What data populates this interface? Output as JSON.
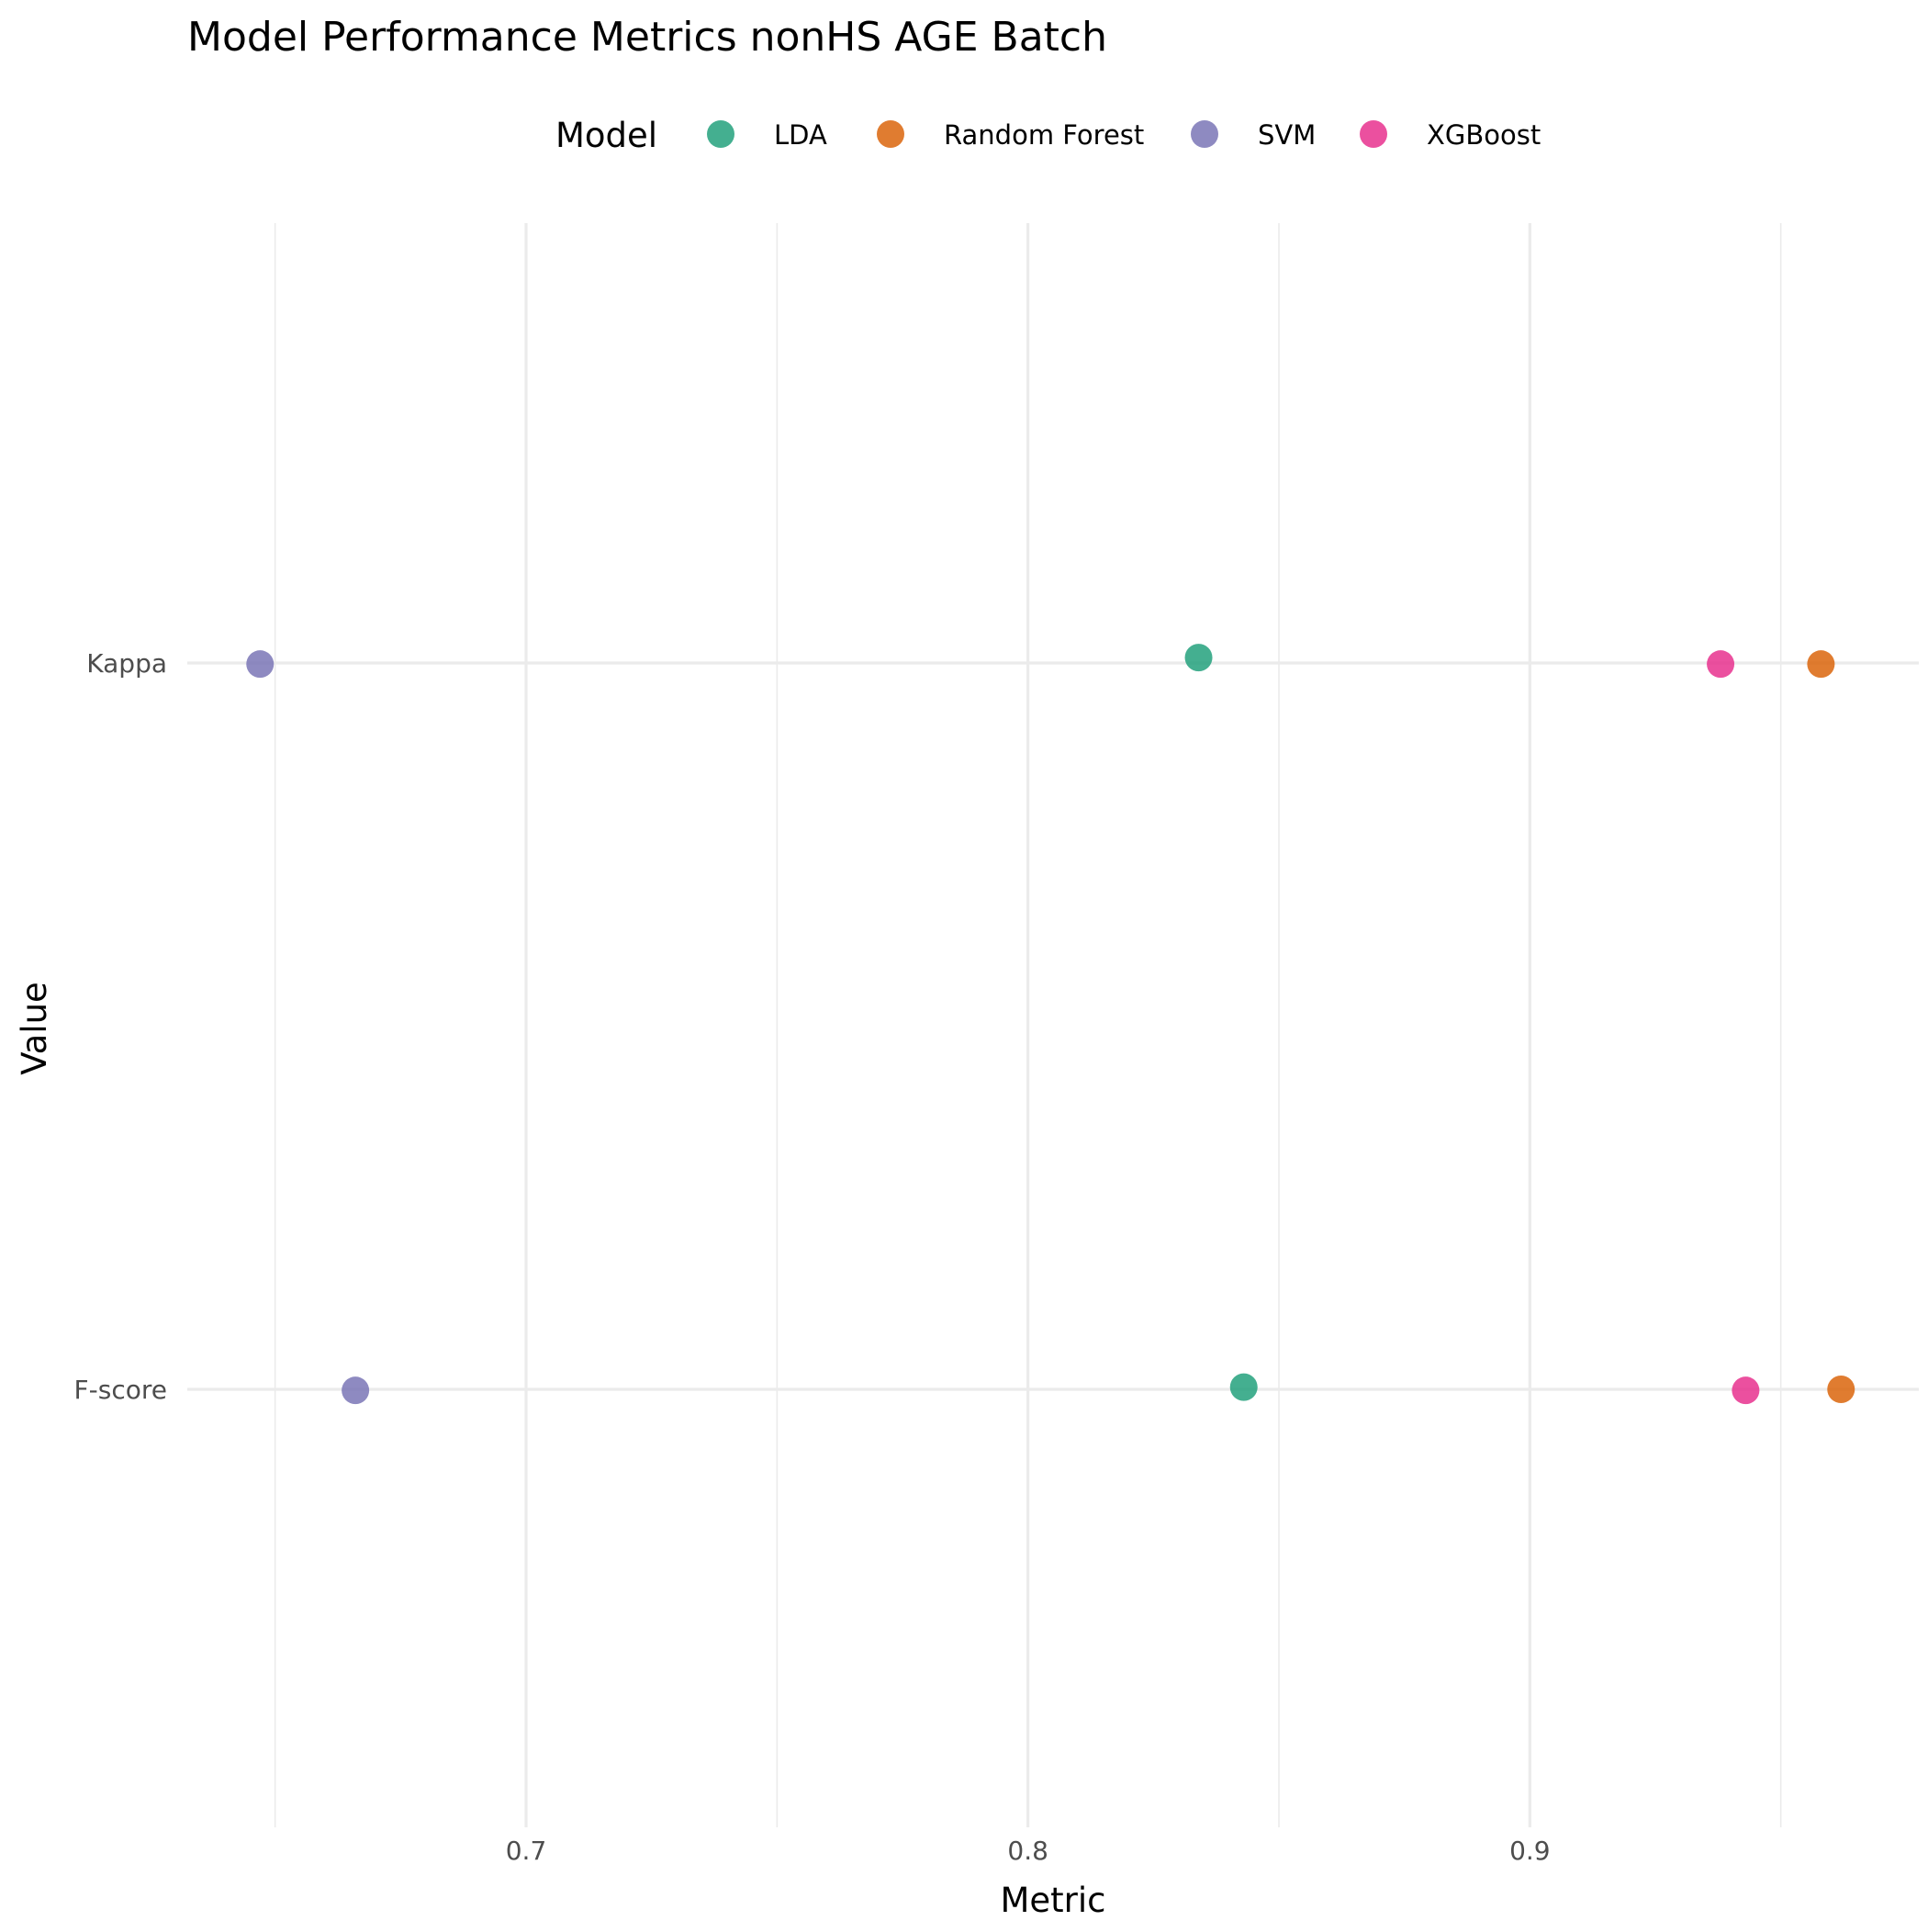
{
  "chart_data": {
    "type": "scatter",
    "title": "Model Performance Metrics nonHS AGE Batch",
    "xlabel": "Metric",
    "ylabel": "Value",
    "xlim": [
      0.6325,
      0.9775
    ],
    "x_ticks": [
      0.7,
      0.8,
      0.9
    ],
    "x_tick_labels": [
      "0.7",
      "0.8",
      "0.9"
    ],
    "x_minor_ticks": [
      0.65,
      0.75,
      0.85,
      0.95
    ],
    "categories": [
      "Kappa",
      "F-score"
    ],
    "grid": true,
    "legend": {
      "title": "Model",
      "position": "top"
    },
    "series": [
      {
        "name": "LDA",
        "color": "#1b9e77",
        "points": [
          {
            "category": "Kappa",
            "x": 0.834,
            "jitter": 0.01
          },
          {
            "category": "F-score",
            "x": 0.843,
            "jitter": 0.004
          }
        ]
      },
      {
        "name": "Random Forest",
        "color": "#d95f02",
        "points": [
          {
            "category": "Kappa",
            "x": 0.958,
            "jitter": -0.002
          },
          {
            "category": "F-score",
            "x": 0.962,
            "jitter": 0.0
          }
        ]
      },
      {
        "name": "SVM",
        "color": "#7570b3",
        "points": [
          {
            "category": "Kappa",
            "x": 0.647,
            "jitter": -0.002
          },
          {
            "category": "F-score",
            "x": 0.666,
            "jitter": -0.002
          }
        ]
      },
      {
        "name": "XGBoost",
        "color": "#e7298a",
        "points": [
          {
            "category": "Kappa",
            "x": 0.938,
            "jitter": -0.002
          },
          {
            "category": "F-score",
            "x": 0.943,
            "jitter": -0.002
          }
        ]
      }
    ]
  }
}
